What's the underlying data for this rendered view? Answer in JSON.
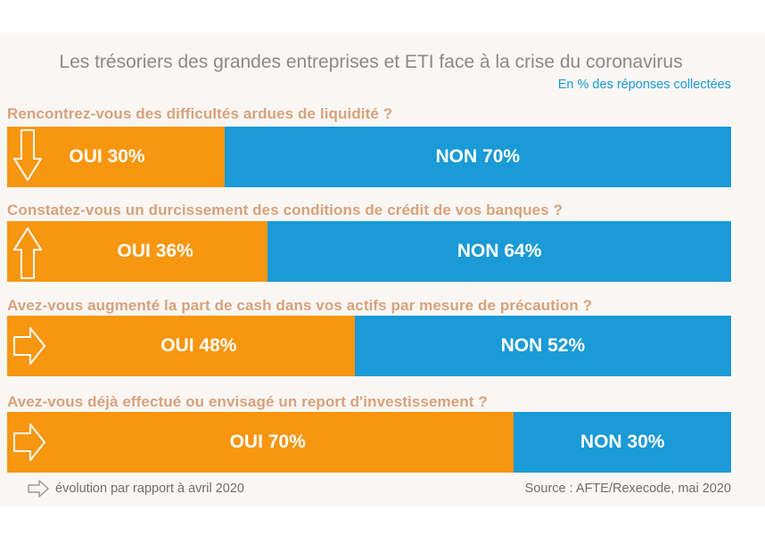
{
  "title": "Les trésoriers des grandes entreprises et ETI face à la crise du coronavirus",
  "subtitle": "En % des réponses collectées",
  "colors": {
    "oui": "#f7960f",
    "non": "#1a9ad6",
    "question": "#d8a27a"
  },
  "chart_data": {
    "type": "bar",
    "orientation": "horizontal-stacked-100",
    "title": "Les trésoriers des grandes entreprises et ETI face à la crise du coronavirus",
    "subtitle": "En % des réponses collectées",
    "series_names": [
      "OUI",
      "NON"
    ],
    "rows": [
      {
        "question": "Rencontrez-vous des difficultés ardues de liquidité ?",
        "oui": 30,
        "non": 70,
        "oui_label": "OUI 30%",
        "non_label": "NON 70%",
        "evolution_icon": "arrow-down-icon"
      },
      {
        "question": "Constatez-vous un durcissement des conditions de crédit de vos banques ?",
        "oui": 36,
        "non": 64,
        "oui_label": "OUI 36%",
        "non_label": "NON 64%",
        "evolution_icon": "arrow-up-icon"
      },
      {
        "question": "Avez-vous augmenté la part de cash dans vos actifs par mesure de précaution ?",
        "oui": 48,
        "non": 52,
        "oui_label": "OUI 48%",
        "non_label": "NON 52%",
        "evolution_icon": "arrow-right-icon"
      },
      {
        "question": "Avez-vous déjà effectué ou envisagé un report  d'investissement ?",
        "oui": 70,
        "non": 30,
        "oui_label": "OUI 70%",
        "non_label": "NON 30%",
        "evolution_icon": "arrow-right-icon"
      }
    ]
  },
  "footer": {
    "legend_icon": "arrow-right-icon",
    "legend_text": "évolution par rapport à avril 2020",
    "source": "Source : AFTE/Rexecode, mai 2020"
  }
}
